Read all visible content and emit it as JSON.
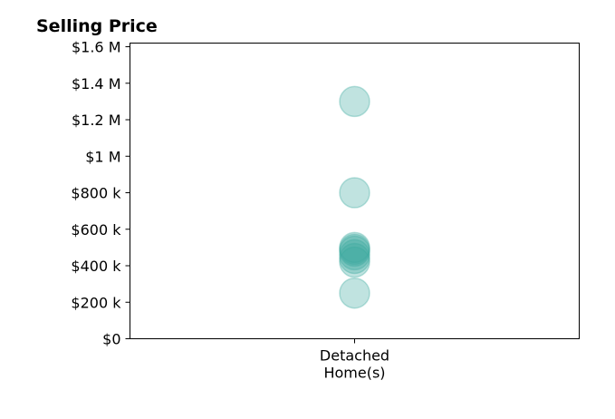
{
  "chart_data": {
    "type": "scatter",
    "title": "Selling Price",
    "xlabel": "",
    "ylabel": "",
    "categories": [
      [
        "Detached",
        "Home(s)"
      ]
    ],
    "ylim": [
      0,
      1620000
    ],
    "yticks": [
      {
        "value": 0,
        "label": "$0"
      },
      {
        "value": 200000,
        "label": "$200 k"
      },
      {
        "value": 400000,
        "label": "$400 k"
      },
      {
        "value": 600000,
        "label": "$600 k"
      },
      {
        "value": 800000,
        "label": "$800 k"
      },
      {
        "value": 1000000,
        "label": "$1 M"
      },
      {
        "value": 1200000,
        "label": "$1.2 M"
      },
      {
        "value": 1400000,
        "label": "$1.4 M"
      },
      {
        "value": 1600000,
        "label": "$1.6 M"
      }
    ],
    "series": [
      {
        "category": 0,
        "values": [
          1300000,
          800000,
          500000,
          490000,
          480000,
          460000,
          440000,
          420000,
          250000
        ]
      }
    ],
    "marker_color": "#3aa89e",
    "grid": false,
    "legend": "none"
  }
}
